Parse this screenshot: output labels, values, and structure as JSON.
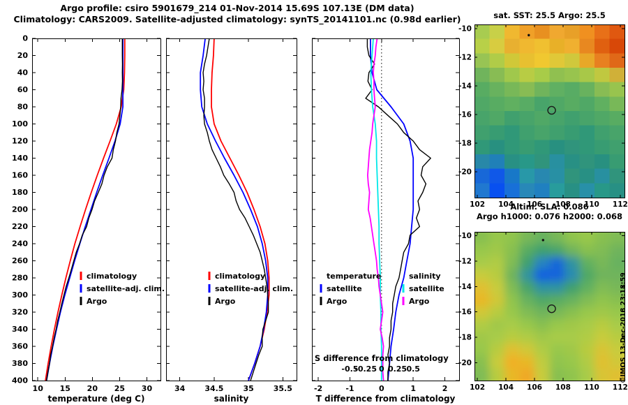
{
  "title": {
    "line1": "Argo profile: csiro 5901679_214 01-Nov-2014 15.69S 107.13E (DM data)",
    "line2": "Climatology: CARS2009. Satellite-adjusted climatology: synTS_20141101.nc (0.98d earlier)"
  },
  "copyright": "©IMOS 13-Dec-2018 23:18:59",
  "chart_data": [
    {
      "id": "temperature-profile",
      "type": "line",
      "xlabel": "temperature (deg C)",
      "xlim": [
        8.95,
        32.5
      ],
      "x_ticks": [
        10,
        15,
        20,
        25,
        30
      ],
      "x_tick_labels": [
        "10",
        "15",
        "20",
        "25",
        "30"
      ],
      "ylim": [
        0,
        400
      ],
      "y_ticks": [
        0,
        20,
        40,
        60,
        80,
        100,
        120,
        140,
        160,
        180,
        200,
        220,
        240,
        260,
        280,
        300,
        320,
        340,
        360,
        380,
        400
      ],
      "show_y_tick_labels": true,
      "series": [
        {
          "name": "climatology",
          "color": "#ff0000",
          "depth_step": 20,
          "values": [
            25.95,
            25.95,
            25.9,
            25.75,
            25.3,
            24.4,
            23.25,
            22.05,
            20.9,
            19.8,
            18.75,
            17.75,
            16.8,
            15.95,
            15.15,
            14.4,
            13.7,
            13.05,
            12.45,
            11.9,
            11.4
          ]
        },
        {
          "name": "satellite-adj. clim.",
          "color": "#0000ff",
          "depth_step": 20,
          "values": [
            25.6,
            25.6,
            25.6,
            25.6,
            25.6,
            25.1,
            24.15,
            23.05,
            21.9,
            20.8,
            19.75,
            18.7,
            17.7,
            16.75,
            15.85,
            14.95,
            14.15,
            13.43,
            12.75,
            12.15,
            11.6
          ]
        },
        {
          "name": "Argo",
          "color": "#000000",
          "depth_step": 10,
          "values": [
            25.5,
            25.5,
            25.5,
            25.53,
            25.5,
            25.52,
            25.45,
            25.25,
            25.2,
            25.05,
            24.9,
            24.5,
            24.25,
            23.85,
            23.6,
            22.75,
            22.15,
            21.75,
            21.1,
            20.4,
            19.95,
            19.35,
            18.95,
            18.15,
            17.65,
            17.05,
            16.6,
            16.15,
            15.7,
            15.2,
            14.8,
            14.4,
            14.05,
            13.65,
            13.35,
            13.0,
            12.7,
            12.35,
            12.15,
            11.85,
            11.6
          ]
        }
      ],
      "legend": [
        {
          "label": "climatology",
          "color": "#ff0000"
        },
        {
          "label": "satellite-adj. clim.",
          "color": "#0000ff"
        },
        {
          "label": "Argo",
          "color": "#000000"
        }
      ]
    },
    {
      "id": "salinity-profile",
      "type": "line",
      "xlabel": "salinity",
      "xlim": [
        33.8,
        35.7
      ],
      "x_ticks": [
        34,
        34.5,
        35,
        35.5
      ],
      "x_tick_labels": [
        "34",
        "34.5",
        "35",
        "35.5"
      ],
      "ylim": [
        0,
        400
      ],
      "y_ticks": [
        0,
        20,
        40,
        60,
        80,
        100,
        120,
        140,
        160,
        180,
        200,
        220,
        240,
        260,
        280,
        300,
        320,
        340,
        360,
        380,
        400
      ],
      "show_y_tick_labels": false,
      "series": [
        {
          "name": "climatology",
          "color": "#ff0000",
          "depth_step": 20,
          "values": [
            34.5,
            34.49,
            34.47,
            34.46,
            34.46,
            34.5,
            34.6,
            34.73,
            34.86,
            34.98,
            35.08,
            35.17,
            35.24,
            35.28,
            35.3,
            35.3,
            35.27,
            35.23,
            35.17,
            35.09,
            35.0
          ]
        },
        {
          "name": "satellite-adj. clim.",
          "color": "#0000ff",
          "depth_step": 20,
          "values": [
            34.37,
            34.34,
            34.3,
            34.3,
            34.32,
            34.4,
            34.52,
            34.65,
            34.79,
            34.92,
            35.03,
            35.13,
            35.2,
            35.25,
            35.28,
            35.28,
            35.26,
            35.22,
            35.17,
            35.09,
            35.0
          ]
        },
        {
          "name": "Argo",
          "color": "#000000",
          "depth_step": 10,
          "values": [
            34.43,
            34.41,
            34.39,
            34.36,
            34.34,
            34.35,
            34.34,
            34.36,
            34.36,
            34.35,
            34.36,
            34.4,
            34.43,
            34.47,
            34.53,
            34.59,
            34.64,
            34.72,
            34.79,
            34.82,
            34.87,
            34.95,
            35.01,
            35.07,
            35.12,
            35.17,
            35.2,
            35.23,
            35.25,
            35.27,
            35.28,
            35.29,
            35.29,
            35.25,
            35.21,
            35.2,
            35.2,
            35.15,
            35.11,
            35.07,
            35.03
          ]
        }
      ],
      "legend": [
        {
          "label": "climatology",
          "color": "#ff0000"
        },
        {
          "label": "satellite-adj. clim.",
          "color": "#0000ff"
        },
        {
          "label": "Argo",
          "color": "#000000"
        }
      ]
    },
    {
      "id": "difference-profile",
      "type": "line",
      "xlabel": "T difference from climatology",
      "xlim": [
        -2.2,
        2.45
      ],
      "x_ticks": [
        -2,
        -1,
        0,
        1,
        2
      ],
      "x_tick_labels": [
        "-2",
        "-1",
        "0",
        "1",
        "2"
      ],
      "ylim": [
        0,
        400
      ],
      "y_ticks": [
        0,
        20,
        40,
        60,
        80,
        100,
        120,
        140,
        160,
        180,
        200,
        220,
        240,
        260,
        280,
        300,
        320,
        340,
        360,
        380,
        400
      ],
      "show_y_tick_labels": false,
      "zero_line": true,
      "secondary_axis": {
        "label": "S difference from climatology",
        "ticks": [
          -0.5,
          -0.25,
          0,
          0.25,
          0.5
        ],
        "tick_labels": [
          "-0.5",
          "-0.25",
          "0",
          "0.25",
          "0.5"
        ],
        "x_scale": 2
      },
      "series": [
        {
          "name": "T satellite",
          "color": "#0000ff",
          "depth_step": 20,
          "values": [
            -0.35,
            -0.35,
            -0.3,
            -0.15,
            0.3,
            0.7,
            0.9,
            1.0,
            1.0,
            1.0,
            1.0,
            0.95,
            0.9,
            0.8,
            0.7,
            0.55,
            0.45,
            0.38,
            0.3,
            0.25,
            0.2
          ]
        },
        {
          "name": "T Argo",
          "color": "#000000",
          "depth_step": 10,
          "values": [
            -0.45,
            -0.45,
            -0.4,
            -0.22,
            -0.4,
            -0.43,
            -0.3,
            -0.5,
            -0.1,
            0.2,
            0.5,
            0.7,
            1.0,
            1.2,
            1.55,
            1.3,
            1.25,
            1.4,
            1.3,
            1.15,
            1.2,
            1.1,
            1.2,
            0.9,
            0.85,
            0.7,
            0.65,
            0.6,
            0.55,
            0.45,
            0.4,
            0.35,
            0.35,
            0.3,
            0.3,
            0.25,
            0.25,
            0.2,
            0.25,
            0.2,
            0.2
          ]
        },
        {
          "name": "S satellite",
          "color": "#00e8e8",
          "depth_step": 20,
          "x_scale": 2,
          "values": [
            -0.13,
            -0.15,
            -0.17,
            -0.16,
            -0.14,
            -0.1,
            -0.08,
            -0.08,
            -0.07,
            -0.06,
            -0.05,
            -0.04,
            -0.04,
            -0.03,
            -0.02,
            -0.02,
            -0.01,
            -0.01,
            0.0,
            0.0,
            0.0
          ]
        },
        {
          "name": "S Argo",
          "color": "#ff00ff",
          "depth_step": 10,
          "x_scale": 2,
          "values": [
            -0.07,
            -0.09,
            -0.1,
            -0.12,
            -0.13,
            -0.12,
            -0.12,
            -0.11,
            -0.1,
            -0.12,
            -0.14,
            -0.15,
            -0.17,
            -0.19,
            -0.2,
            -0.21,
            -0.22,
            -0.21,
            -0.19,
            -0.2,
            -0.21,
            -0.18,
            -0.16,
            -0.14,
            -0.12,
            -0.1,
            -0.08,
            -0.07,
            -0.05,
            -0.04,
            -0.02,
            0.0,
            0.02,
            0.0,
            -0.02,
            0.01,
            0.03,
            0.02,
            0.02,
            0.02,
            0.03
          ]
        }
      ],
      "legend_groups": [
        {
          "header": "temperature",
          "entries": [
            {
              "label": "satellite",
              "color": "#0000ff"
            },
            {
              "label": "Argo",
              "color": "#000000"
            }
          ]
        },
        {
          "header": "salinity",
          "entries": [
            {
              "label": "satellite",
              "color": "#00e8e8"
            },
            {
              "label": "Argo",
              "color": "#ff00ff"
            }
          ]
        }
      ]
    },
    {
      "id": "sst-map",
      "type": "heatmap",
      "title_lines": [
        "sat. SST: 25.5  Argo: 25.5"
      ],
      "xlim": [
        101.8,
        112.3
      ],
      "ylim": [
        -9.7,
        -21.8
      ],
      "x_ticks": [
        102,
        104,
        106,
        108,
        110,
        112
      ],
      "x_tick_labels": [
        "102",
        "104",
        "106",
        "108",
        "110",
        "112"
      ],
      "y_ticks": [
        -10,
        -12,
        -14,
        -16,
        -18,
        -20
      ],
      "y_tick_labels": [
        "-10",
        "-12",
        "-14",
        "-16",
        "-18",
        "-20"
      ],
      "smooth": false,
      "markers": [
        {
          "type": "circle",
          "x": 107.2,
          "y": -15.7
        },
        {
          "type": "dot",
          "x": 105.6,
          "y": -10.45
        }
      ],
      "cells": [
        [
          "#a8cc50",
          "#c8d048",
          "#f0b830",
          "#f0a028",
          "#e89020",
          "#f0a830",
          "#e8a028",
          "#f09020",
          "#e87018",
          "#e05810"
        ],
        [
          "#b8d048",
          "#d8cc40",
          "#e8b030",
          "#f0b830",
          "#f0c030",
          "#e8b028",
          "#f0b030",
          "#e88820",
          "#e06010",
          "#d84808"
        ],
        [
          "#98c454",
          "#b0cc48",
          "#d0c838",
          "#e8c030",
          "#f0c830",
          "#e0c838",
          "#d0c83c",
          "#e8a828",
          "#e88020",
          "#e06818"
        ],
        [
          "#70b45c",
          "#88bc54",
          "#a0c84c",
          "#b8cc44",
          "#a8cc48",
          "#90c050",
          "#98c44e",
          "#a8c848",
          "#c0c840",
          "#d0b038"
        ],
        [
          "#58ac62",
          "#68b25e",
          "#78b858",
          "#88bc54",
          "#70b45c",
          "#60b062",
          "#58ac64",
          "#68b25e",
          "#88bc54",
          "#98c44e"
        ],
        [
          "#50a866",
          "#58ac62",
          "#60b060",
          "#58ac64",
          "#48a46a",
          "#50a866",
          "#58ac62",
          "#50a866",
          "#60b060",
          "#78b858"
        ],
        [
          "#48a46a",
          "#50a866",
          "#40a06e",
          "#48a46a",
          "#50a866",
          "#48a46a",
          "#40a06e",
          "#48a46a",
          "#50a866",
          "#58ac62"
        ],
        [
          "#40a06e",
          "#389c72",
          "#309878",
          "#40a06e",
          "#48a46a",
          "#40a06e",
          "#389c72",
          "#309878",
          "#40a06e",
          "#48a46a"
        ],
        [
          "#309878",
          "#289080",
          "#309878",
          "#389c72",
          "#309878",
          "#289080",
          "#30947c",
          "#309878",
          "#389c72",
          "#40a06e"
        ],
        [
          "#2888a8",
          "#2080b8",
          "#289084",
          "#289888",
          "#30947c",
          "#2890a0",
          "#289084",
          "#30947c",
          "#289080",
          "#389c72"
        ],
        [
          "#1868d8",
          "#1058e8",
          "#1878c8",
          "#2898a8",
          "#2888b0",
          "#2890a4",
          "#30947c",
          "#289084",
          "#2890a0",
          "#30947c"
        ],
        [
          "#2078d0",
          "#0850f0",
          "#1870d8",
          "#2888b8",
          "#2080c0",
          "#289c9c",
          "#289084",
          "#2890a8",
          "#289888",
          "#289084"
        ]
      ]
    },
    {
      "id": "sla-map",
      "type": "heatmap",
      "title_lines": [
        "Altim. SLA: 0.086",
        "Argo h1000: 0.076 h2000: 0.068"
      ],
      "xlim": [
        101.8,
        112.3
      ],
      "ylim": [
        -9.7,
        -21.4
      ],
      "x_ticks": [
        102,
        104,
        106,
        108,
        110,
        112
      ],
      "x_tick_labels": [
        "102",
        "104",
        "106",
        "108",
        "110",
        "112"
      ],
      "y_ticks": [
        -10,
        -12,
        -14,
        -16,
        -18,
        -20
      ],
      "y_tick_labels": [
        "-10",
        "-12",
        "-14",
        "-16",
        "-18",
        "-20"
      ],
      "smooth": true,
      "markers": [
        {
          "type": "circle",
          "x": 107.2,
          "y": -15.75
        },
        {
          "type": "dot",
          "x": 106.6,
          "y": -10.35
        }
      ],
      "cells": [
        [
          "#88c050",
          "#98c84c",
          "#90c44e",
          "#78b858",
          "#68b25e",
          "#78b858",
          "#90c44e",
          "#98c84c",
          "#88c050",
          "#80bc54"
        ],
        [
          "#98c84c",
          "#a0c848",
          "#88c050",
          "#58ac62",
          "#40a06e",
          "#48a46a",
          "#70b45c",
          "#88c050",
          "#80bc54",
          "#70b45c"
        ],
        [
          "#a8cc48",
          "#b0cc44",
          "#80bc54",
          "#40a06e",
          "#2584c0",
          "#1868d8",
          "#2f93a0",
          "#60b060",
          "#78b858",
          "#68b25e"
        ],
        [
          "#c8cc3c",
          "#b8cc40",
          "#70b45c",
          "#30949c",
          "#1060e0",
          "#1464dc",
          "#2a8cb0",
          "#50a866",
          "#70b45c",
          "#70b45c"
        ],
        [
          "#e0c030",
          "#c8cc3c",
          "#80bc54",
          "#48a46a",
          "#2f93a0",
          "#2f93a0",
          "#40a06e",
          "#60b060",
          "#80bc54",
          "#78b858"
        ],
        [
          "#e8b828",
          "#d0c838",
          "#90c44e",
          "#68b25e",
          "#50a866",
          "#58ac62",
          "#68b25e",
          "#80bc54",
          "#90c44e",
          "#88c050"
        ],
        [
          "#d0c838",
          "#b8cc40",
          "#98c84c",
          "#80bc54",
          "#70b45c",
          "#78b858",
          "#88c050",
          "#98c84c",
          "#a0c848",
          "#98c84c"
        ],
        [
          "#b0cc44",
          "#a0c848",
          "#a8cc48",
          "#98c84c",
          "#88c050",
          "#98c84c",
          "#a0c848",
          "#a8cc48",
          "#b8cc40",
          "#a8cc48"
        ],
        [
          "#a0c848",
          "#a8cc48",
          "#b8cc40",
          "#b0cc44",
          "#a0c848",
          "#a8cc48",
          "#a8cc48",
          "#b0cc44",
          "#c8cc3c",
          "#b8cc40"
        ],
        [
          "#98c84c",
          "#b8cc40",
          "#e0c030",
          "#d0c838",
          "#b0cc44",
          "#98c84c",
          "#a0c848",
          "#b8cc40",
          "#d8c434",
          "#c8cc3c"
        ],
        [
          "#88c050",
          "#c8cc3c",
          "#f0b028",
          "#e8b828",
          "#c0cc40",
          "#90c44e",
          "#98c84c",
          "#b0cc44",
          "#e0c030",
          "#d0c838"
        ],
        [
          "#80bc54",
          "#b8cc40",
          "#e8b828",
          "#f0a828",
          "#c8cc3c",
          "#88c050",
          "#90c44e",
          "#a8cc48",
          "#d8c434",
          "#e0c030"
        ]
      ]
    }
  ]
}
